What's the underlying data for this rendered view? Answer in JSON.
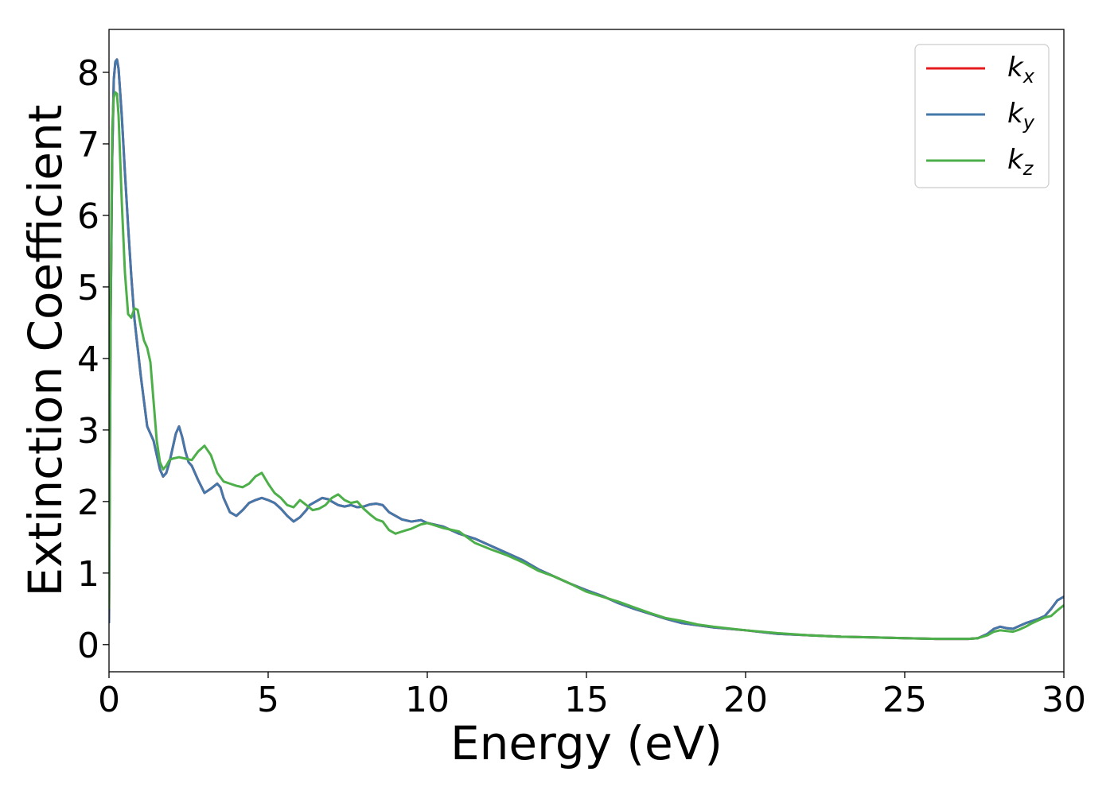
{
  "chart_data": {
    "type": "line",
    "xlabel": "Energy (eV)",
    "ylabel": "Extinction Coefficient",
    "xlim": [
      0,
      30
    ],
    "ylim": [
      -0.38,
      8.6
    ],
    "xticks": [
      "0",
      "5",
      "10",
      "15",
      "20",
      "25",
      "30"
    ],
    "yticks": [
      "0",
      "1",
      "2",
      "3",
      "4",
      "5",
      "6",
      "7",
      "8"
    ],
    "grid": false,
    "legend_position": "top-right",
    "series": [
      {
        "name": "k",
        "subscript": "x",
        "color": "#e41a1c",
        "x": [
          0,
          0.05,
          0.1,
          0.15,
          0.2,
          0.25,
          0.3,
          0.4,
          0.5,
          0.6,
          0.7,
          0.8,
          0.9,
          1.0,
          1.1,
          1.2,
          1.3,
          1.4,
          1.5,
          1.6,
          1.7,
          1.8,
          1.9,
          2.0,
          2.1,
          2.2,
          2.3,
          2.4,
          2.5,
          2.6,
          2.7,
          2.8,
          3.0,
          3.2,
          3.4,
          3.5,
          3.6,
          3.8,
          4.0,
          4.2,
          4.4,
          4.6,
          4.8,
          5.0,
          5.2,
          5.4,
          5.6,
          5.8,
          6.0,
          6.2,
          6.3,
          6.5,
          6.7,
          6.9,
          7.0,
          7.2,
          7.4,
          7.6,
          7.8,
          8.0,
          8.2,
          8.4,
          8.6,
          8.8,
          9.0,
          9.2,
          9.5,
          9.8,
          10.0,
          10.5,
          11.0,
          11.5,
          12.0,
          12.5,
          13.0,
          13.5,
          14.0,
          14.5,
          15.0,
          15.5,
          16.0,
          16.5,
          17.0,
          17.5,
          18.0,
          18.5,
          19.0,
          20.0,
          21.0,
          22.0,
          23.0,
          24.0,
          25.0,
          26.0,
          27.0,
          27.3,
          27.6,
          27.8,
          28.0,
          28.2,
          28.4,
          28.6,
          28.8,
          29.0,
          29.2,
          29.4,
          29.6,
          29.8,
          30.0
        ],
        "y": [
          0.3,
          4.5,
          6.8,
          7.9,
          8.15,
          8.18,
          8.05,
          7.4,
          6.6,
          5.85,
          5.15,
          4.55,
          4.15,
          3.75,
          3.4,
          3.05,
          2.95,
          2.85,
          2.65,
          2.45,
          2.35,
          2.4,
          2.55,
          2.75,
          2.95,
          3.05,
          2.9,
          2.7,
          2.55,
          2.5,
          2.4,
          2.3,
          2.12,
          2.18,
          2.25,
          2.2,
          2.05,
          1.85,
          1.8,
          1.88,
          1.98,
          2.02,
          2.05,
          2.02,
          1.98,
          1.9,
          1.8,
          1.72,
          1.78,
          1.88,
          1.95,
          2.0,
          2.05,
          2.03,
          2.0,
          1.95,
          1.93,
          1.95,
          1.92,
          1.93,
          1.96,
          1.97,
          1.95,
          1.85,
          1.8,
          1.75,
          1.72,
          1.74,
          1.7,
          1.65,
          1.55,
          1.48,
          1.38,
          1.28,
          1.18,
          1.05,
          0.95,
          0.85,
          0.76,
          0.68,
          0.58,
          0.5,
          0.43,
          0.36,
          0.3,
          0.27,
          0.24,
          0.2,
          0.15,
          0.13,
          0.11,
          0.1,
          0.09,
          0.08,
          0.08,
          0.09,
          0.15,
          0.22,
          0.25,
          0.23,
          0.22,
          0.26,
          0.3,
          0.33,
          0.36,
          0.4,
          0.5,
          0.62,
          0.67
        ]
      },
      {
        "name": "k",
        "subscript": "y",
        "color": "#4477aa",
        "x": [
          0,
          0.05,
          0.1,
          0.15,
          0.2,
          0.25,
          0.3,
          0.4,
          0.5,
          0.6,
          0.7,
          0.8,
          0.9,
          1.0,
          1.1,
          1.2,
          1.3,
          1.4,
          1.5,
          1.6,
          1.7,
          1.8,
          1.9,
          2.0,
          2.1,
          2.2,
          2.3,
          2.4,
          2.5,
          2.6,
          2.7,
          2.8,
          3.0,
          3.2,
          3.4,
          3.5,
          3.6,
          3.8,
          4.0,
          4.2,
          4.4,
          4.6,
          4.8,
          5.0,
          5.2,
          5.4,
          5.6,
          5.8,
          6.0,
          6.2,
          6.3,
          6.5,
          6.7,
          6.9,
          7.0,
          7.2,
          7.4,
          7.6,
          7.8,
          8.0,
          8.2,
          8.4,
          8.6,
          8.8,
          9.0,
          9.2,
          9.5,
          9.8,
          10.0,
          10.5,
          11.0,
          11.5,
          12.0,
          12.5,
          13.0,
          13.5,
          14.0,
          14.5,
          15.0,
          15.5,
          16.0,
          16.5,
          17.0,
          17.5,
          18.0,
          18.5,
          19.0,
          20.0,
          21.0,
          22.0,
          23.0,
          24.0,
          25.0,
          26.0,
          27.0,
          27.3,
          27.6,
          27.8,
          28.0,
          28.2,
          28.4,
          28.6,
          28.8,
          29.0,
          29.2,
          29.4,
          29.6,
          29.8,
          30.0
        ],
        "y": [
          0.3,
          4.5,
          6.8,
          7.9,
          8.15,
          8.18,
          8.05,
          7.4,
          6.6,
          5.85,
          5.15,
          4.55,
          4.15,
          3.75,
          3.4,
          3.05,
          2.95,
          2.85,
          2.65,
          2.45,
          2.35,
          2.4,
          2.55,
          2.75,
          2.95,
          3.05,
          2.9,
          2.7,
          2.55,
          2.5,
          2.4,
          2.3,
          2.12,
          2.18,
          2.25,
          2.2,
          2.05,
          1.85,
          1.8,
          1.88,
          1.98,
          2.02,
          2.05,
          2.02,
          1.98,
          1.9,
          1.8,
          1.72,
          1.78,
          1.88,
          1.95,
          2.0,
          2.05,
          2.03,
          2.0,
          1.95,
          1.93,
          1.95,
          1.92,
          1.93,
          1.96,
          1.97,
          1.95,
          1.85,
          1.8,
          1.75,
          1.72,
          1.74,
          1.7,
          1.65,
          1.55,
          1.48,
          1.38,
          1.28,
          1.18,
          1.05,
          0.95,
          0.85,
          0.76,
          0.68,
          0.58,
          0.5,
          0.43,
          0.36,
          0.3,
          0.27,
          0.24,
          0.2,
          0.15,
          0.13,
          0.11,
          0.1,
          0.09,
          0.08,
          0.08,
          0.09,
          0.15,
          0.22,
          0.25,
          0.23,
          0.22,
          0.26,
          0.3,
          0.33,
          0.36,
          0.4,
          0.5,
          0.62,
          0.67
        ]
      },
      {
        "name": "k",
        "subscript": "z",
        "color": "#4daf4a",
        "x": [
          0,
          0.05,
          0.1,
          0.15,
          0.2,
          0.25,
          0.3,
          0.35,
          0.4,
          0.5,
          0.6,
          0.7,
          0.8,
          0.9,
          1.0,
          1.1,
          1.2,
          1.3,
          1.4,
          1.5,
          1.6,
          1.7,
          1.8,
          1.9,
          2.0,
          2.2,
          2.4,
          2.6,
          2.8,
          3.0,
          3.2,
          3.4,
          3.6,
          3.8,
          4.0,
          4.2,
          4.4,
          4.6,
          4.8,
          5.0,
          5.2,
          5.4,
          5.6,
          5.8,
          6.0,
          6.2,
          6.4,
          6.6,
          6.8,
          7.0,
          7.2,
          7.4,
          7.6,
          7.8,
          8.0,
          8.2,
          8.4,
          8.6,
          8.8,
          9.0,
          9.2,
          9.5,
          9.8,
          10.0,
          10.5,
          11.0,
          11.5,
          12.0,
          12.5,
          13.0,
          13.5,
          14.0,
          14.5,
          15.0,
          15.5,
          16.0,
          16.5,
          17.0,
          17.5,
          18.0,
          18.5,
          19.0,
          20.0,
          21.0,
          22.0,
          23.0,
          24.0,
          25.0,
          26.0,
          27.0,
          27.3,
          27.6,
          27.8,
          28.0,
          28.2,
          28.4,
          28.6,
          28.8,
          29.0,
          29.2,
          29.4,
          29.6,
          29.8,
          30.0
        ],
        "y": [
          0.5,
          4.8,
          7.2,
          7.65,
          7.72,
          7.7,
          7.4,
          6.8,
          6.2,
          5.2,
          4.62,
          4.57,
          4.7,
          4.68,
          4.45,
          4.25,
          4.15,
          3.95,
          3.4,
          2.85,
          2.55,
          2.45,
          2.5,
          2.58,
          2.6,
          2.62,
          2.6,
          2.58,
          2.7,
          2.78,
          2.65,
          2.4,
          2.28,
          2.25,
          2.22,
          2.2,
          2.25,
          2.35,
          2.4,
          2.25,
          2.12,
          2.05,
          1.95,
          1.92,
          2.02,
          1.95,
          1.88,
          1.9,
          1.95,
          2.05,
          2.1,
          2.02,
          1.98,
          2.0,
          1.9,
          1.82,
          1.75,
          1.72,
          1.6,
          1.55,
          1.58,
          1.62,
          1.68,
          1.7,
          1.63,
          1.58,
          1.42,
          1.33,
          1.25,
          1.15,
          1.03,
          0.95,
          0.85,
          0.74,
          0.67,
          0.6,
          0.52,
          0.44,
          0.37,
          0.33,
          0.28,
          0.25,
          0.2,
          0.16,
          0.13,
          0.11,
          0.1,
          0.09,
          0.08,
          0.08,
          0.09,
          0.13,
          0.18,
          0.2,
          0.19,
          0.18,
          0.21,
          0.25,
          0.3,
          0.34,
          0.38,
          0.4,
          0.48,
          0.55
        ]
      }
    ]
  }
}
